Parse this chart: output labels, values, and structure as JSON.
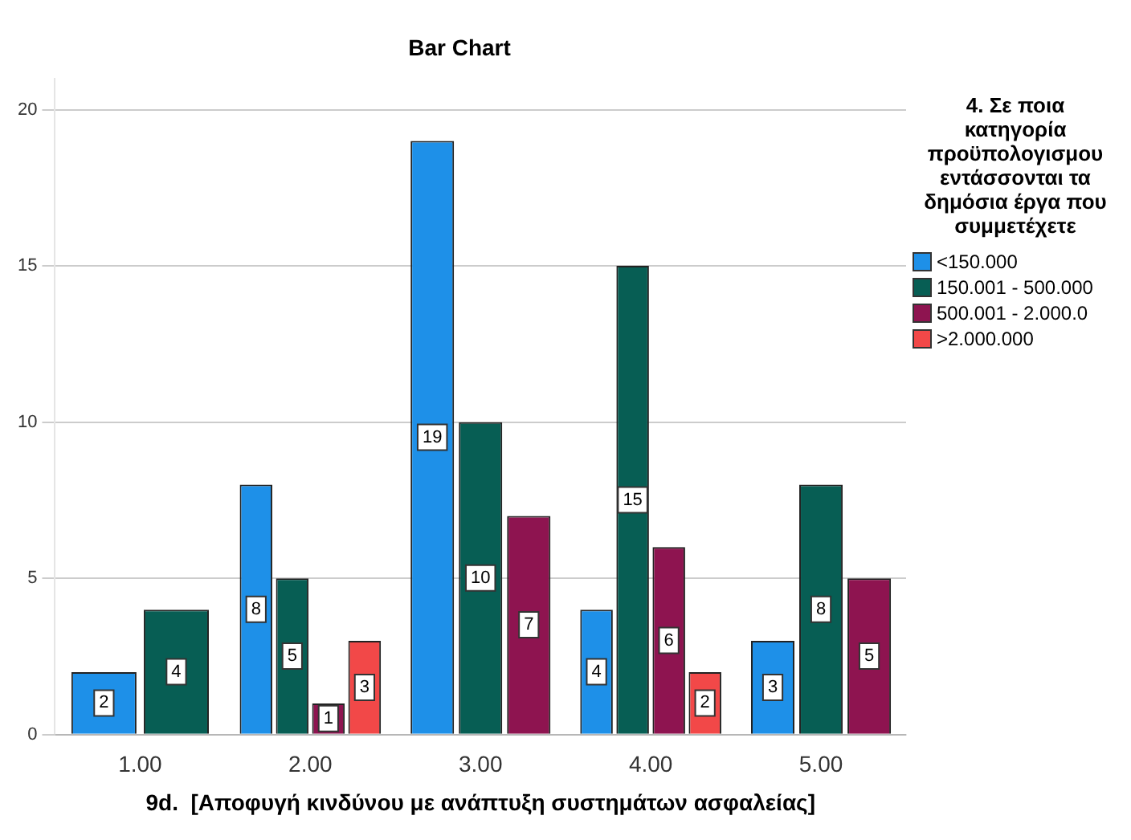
{
  "chart_data": {
    "type": "bar",
    "title": "Bar Chart",
    "xlabel": "9d.  [Αποφυγή κινδύνου με ανάπτυξη συστημάτων ασφαλείας]",
    "legend_title": "4. Σε ποια κατηγορία προϋπολογισμου εντάσσονται τα δημόσια έργα που συμμετέχετε",
    "categories": [
      "1.00",
      "2.00",
      "3.00",
      "4.00",
      "5.00"
    ],
    "series": [
      {
        "name": "<150.000",
        "color": "#1e90e8",
        "values": [
          2,
          8,
          19,
          4,
          3
        ]
      },
      {
        "name": "150.001 - 500.000",
        "color": "#075e54",
        "values": [
          4,
          5,
          10,
          15,
          8
        ]
      },
      {
        "name": "500.001 - 2.000.0",
        "color": "#8e1450",
        "values": [
          null,
          1,
          7,
          6,
          5
        ]
      },
      {
        "name": ">2.000.000",
        "color": "#f24848",
        "values": [
          null,
          3,
          null,
          2,
          null
        ]
      }
    ],
    "ylim": [
      0,
      21
    ],
    "yticks": [
      0,
      5,
      10,
      15,
      20
    ],
    "grid": "y",
    "legend": "right",
    "data_labels": true
  }
}
